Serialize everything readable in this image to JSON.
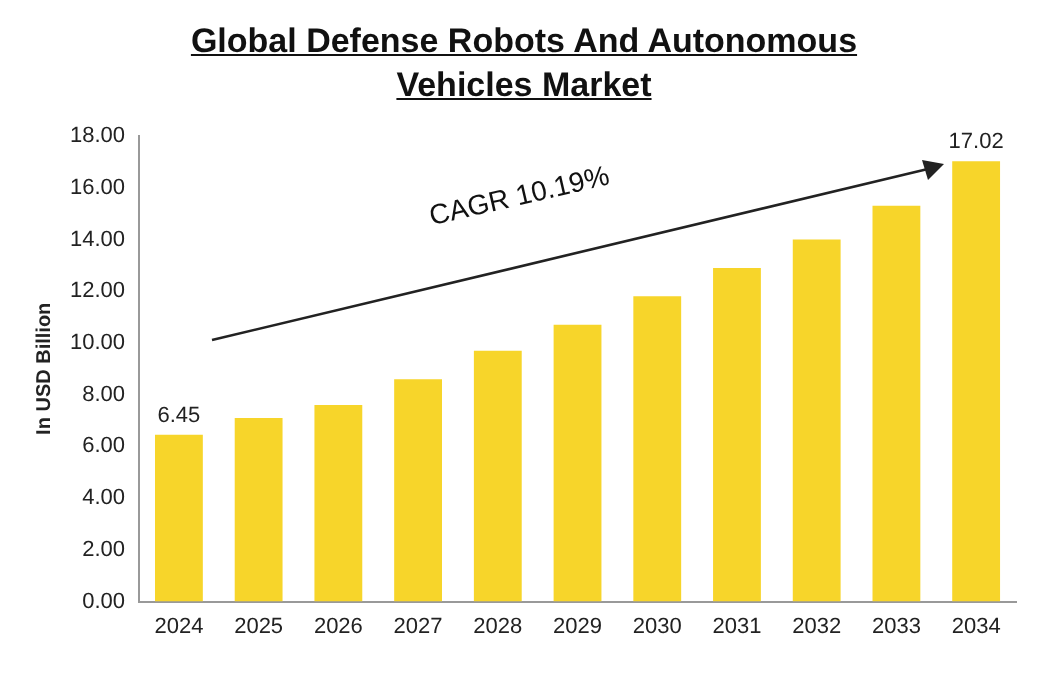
{
  "chart_data": {
    "type": "bar",
    "title": "Global Defense Robots And Autonomous Vehicles Market",
    "ylabel": "In USD Billion",
    "categories": [
      "2024",
      "2025",
      "2026",
      "2027",
      "2028",
      "2029",
      "2030",
      "2031",
      "2032",
      "2033",
      "2034"
    ],
    "values": [
      6.45,
      7.1,
      7.6,
      8.6,
      9.7,
      10.7,
      11.8,
      12.9,
      14.0,
      15.3,
      17.02
    ],
    "value_labels": [
      "6.45",
      null,
      null,
      null,
      null,
      null,
      null,
      null,
      null,
      null,
      "17.02"
    ],
    "color": "#f7d52a",
    "ylim": [
      0,
      18
    ],
    "yticks": [
      {
        "value": 0,
        "label": "0.00"
      },
      {
        "value": 2,
        "label": "2.00"
      },
      {
        "value": 4,
        "label": "4.00"
      },
      {
        "value": 6,
        "label": "6.00"
      },
      {
        "value": 8,
        "label": "8.00"
      },
      {
        "value": 10,
        "label": "10.00"
      },
      {
        "value": 12,
        "label": "12.00"
      },
      {
        "value": 14,
        "label": "14.00"
      },
      {
        "value": 16,
        "label": "16.00"
      },
      {
        "value": 18,
        "label": "18.00"
      }
    ],
    "grid": false,
    "legend": false,
    "annotations": [
      "CAGR 10.19%"
    ]
  }
}
